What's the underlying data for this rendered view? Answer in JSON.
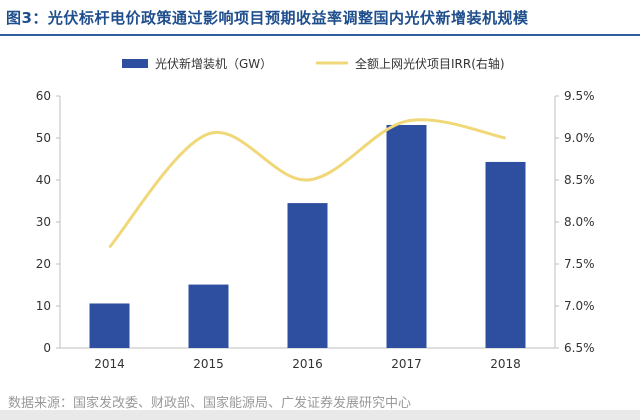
{
  "title": "图3：光伏标杆电价政策通过影响项目预期收益率调整国内光伏新增装机规模",
  "footer": "数据来源：国家发改委、财政部、国家能源局、广发证券发展研究中心",
  "chart_data": {
    "type": "bar",
    "categories": [
      "2014",
      "2015",
      "2016",
      "2017",
      "2018"
    ],
    "series": [
      {
        "name": "光伏新增装机（GW）",
        "type": "bar",
        "axis": "left",
        "color": "#2e4fa0",
        "values": [
          10.6,
          15.1,
          34.5,
          53.1,
          44.3
        ]
      },
      {
        "name": "全额上网光伏项目IRR(右轴)",
        "type": "line",
        "axis": "right",
        "color": "#f0d878",
        "values": [
          7.7,
          9.05,
          8.5,
          9.2,
          9.0
        ]
      }
    ],
    "y_left": {
      "min": 0,
      "max": 60,
      "ticks": [
        "0",
        "10",
        "20",
        "30",
        "40",
        "50",
        "60"
      ]
    },
    "y_right": {
      "min": 6.5,
      "max": 9.5,
      "ticks": [
        "6.5%",
        "7.0%",
        "7.5%",
        "8.0%",
        "8.5%",
        "9.0%",
        "9.5%"
      ]
    },
    "grid": false,
    "legend": "top"
  }
}
